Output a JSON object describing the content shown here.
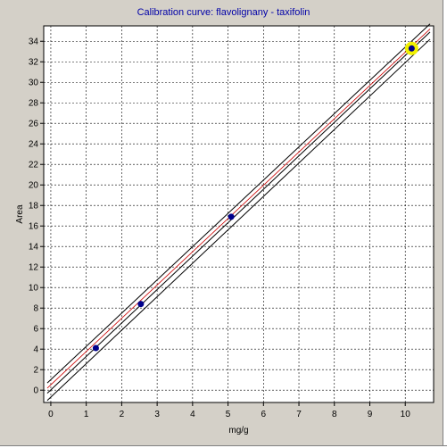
{
  "chart_data": {
    "type": "scatter",
    "title": "Calibration curve: flavolignany - taxifolin",
    "xlabel": "mg/g",
    "ylabel": "Area",
    "xlim": [
      -0.2,
      10.8
    ],
    "ylim": [
      -1.2,
      35.5
    ],
    "x_ticks": [
      0,
      1,
      2,
      3,
      4,
      5,
      6,
      7,
      8,
      9,
      10
    ],
    "y_ticks": [
      0,
      2,
      4,
      6,
      8,
      10,
      12,
      14,
      16,
      18,
      20,
      22,
      24,
      26,
      28,
      30,
      32,
      34
    ],
    "grid": true,
    "series": [
      {
        "kind": "points",
        "x": [
          1.27,
          2.54,
          5.09,
          10.18
        ],
        "y": [
          4.1,
          8.4,
          16.9,
          33.3
        ],
        "color": "#00008b",
        "highlighted_index": 3,
        "highlight_color": "#f0f000"
      },
      {
        "kind": "fit",
        "x": [
          -0.1,
          10.7
        ],
        "y": [
          -0.3,
          34.9
        ],
        "color": "#000000"
      },
      {
        "kind": "confidence_upper",
        "x": [
          -0.1,
          10.7
        ],
        "y": [
          0.7,
          35.7
        ],
        "color": "#000000"
      },
      {
        "kind": "confidence_lower",
        "x": [
          -0.1,
          10.7
        ],
        "y": [
          -1.0,
          34.2
        ],
        "color": "#000000"
      },
      {
        "kind": "center_band",
        "x": [
          -0.1,
          10.7
        ],
        "y": [
          0.2,
          35.2
        ],
        "color": "#cc0000"
      }
    ]
  }
}
